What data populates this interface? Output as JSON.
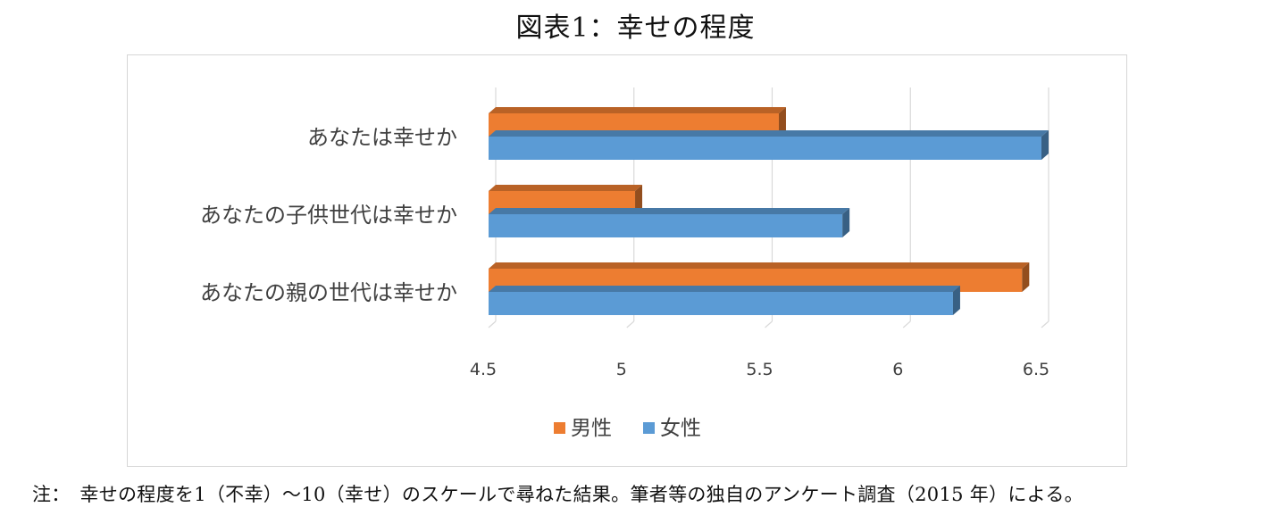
{
  "title": "図表1：幸せの程度",
  "note": "注：　幸せの程度を1（不幸）～10（幸せ）のスケールで尋ねた結果。筆者等の独自のアンケート調査（2015 年）による。",
  "chart_data": {
    "type": "bar",
    "orientation": "horizontal",
    "style": "3d",
    "categories": [
      "あなたは幸せか",
      "あなたの子供世代は幸せか",
      "あなたの親の世代は幸せか"
    ],
    "series": [
      {
        "name": "男性",
        "color": "#ED7D31",
        "values": [
          5.55,
          5.03,
          6.43
        ]
      },
      {
        "name": "女性",
        "color": "#5B9BD5",
        "values": [
          6.5,
          5.78,
          6.18
        ]
      }
    ],
    "xlim": [
      4.5,
      6.5
    ],
    "x_ticks": [
      "4.5",
      "5",
      "5.5",
      "6",
      "6.5"
    ],
    "grid": true,
    "legend_position": "bottom"
  }
}
